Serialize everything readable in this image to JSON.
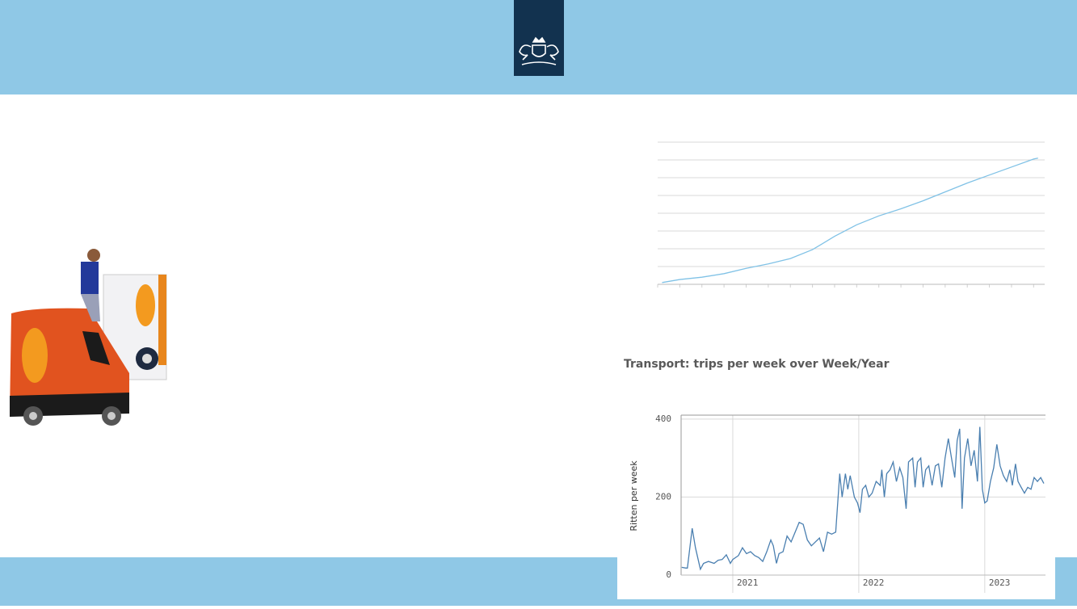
{
  "chart_data": [
    {
      "type": "line",
      "color": "#80c2e6",
      "grid": "y",
      "tick_labels": false,
      "x": [
        0.2,
        1,
        2,
        3,
        4,
        5,
        6,
        7,
        8,
        9,
        10,
        11,
        12,
        13,
        14,
        15,
        16,
        17,
        17.2
      ],
      "values": [
        0.1,
        0.27,
        0.4,
        0.6,
        0.9,
        1.15,
        1.45,
        1.95,
        2.7,
        3.35,
        3.85,
        4.25,
        4.7,
        5.2,
        5.7,
        6.15,
        6.6,
        7.05,
        7.1
      ],
      "xlim": [
        0,
        17.5
      ],
      "xticks": [
        0,
        1,
        2,
        3,
        4,
        5,
        6,
        7,
        8,
        9,
        10,
        11,
        12,
        13,
        14,
        15,
        16,
        17
      ],
      "ylim": [
        0,
        8
      ],
      "yticks": [
        0,
        1,
        2,
        3,
        4,
        5,
        6,
        7,
        8
      ]
    },
    {
      "type": "line",
      "title": "Transport: trips per week over Week/Year",
      "ylabel": "Ritten per week",
      "color": "#4a7fb0",
      "grid": "both",
      "tick_labels": true,
      "x": [
        2020.595,
        2020.627,
        2020.64,
        2020.678,
        2020.704,
        2020.743,
        2020.768,
        2020.807,
        2020.852,
        2020.884,
        2020.916,
        2020.949,
        2020.981,
        2021.0,
        2021.045,
        2021.077,
        2021.109,
        2021.141,
        2021.174,
        2021.206,
        2021.238,
        2021.27,
        2021.302,
        2021.322,
        2021.347,
        2021.367,
        2021.399,
        2021.431,
        2021.463,
        2021.495,
        2021.527,
        2021.559,
        2021.592,
        2021.624,
        2021.656,
        2021.688,
        2021.72,
        2021.752,
        2021.785,
        2021.817,
        2021.849,
        2021.868,
        2021.894,
        2021.913,
        2021.932,
        2021.965,
        2021.99,
        2022.01,
        2022.029,
        2022.055,
        2022.08,
        2022.106,
        2022.138,
        2022.17,
        2022.183,
        2022.203,
        2022.222,
        2022.248,
        2022.273,
        2022.299,
        2022.325,
        2022.35,
        2022.376,
        2022.395,
        2022.428,
        2022.447,
        2022.466,
        2022.492,
        2022.511,
        2022.531,
        2022.556,
        2022.582,
        2022.608,
        2022.633,
        2022.659,
        2022.685,
        2022.711,
        2022.736,
        2022.762,
        2022.781,
        2022.801,
        2022.82,
        2022.839,
        2022.865,
        2022.891,
        2022.916,
        2022.942,
        2022.961,
        2022.981,
        2023.0,
        2023.019,
        2023.045,
        2023.071,
        2023.096,
        2023.122,
        2023.148,
        2023.174,
        2023.199,
        2023.219,
        2023.244,
        2023.264,
        2023.289,
        2023.315,
        2023.341,
        2023.367,
        2023.392,
        2023.418,
        2023.444,
        2023.469
      ],
      "values": [
        20,
        18,
        18,
        120,
        70,
        15,
        30,
        35,
        30,
        38,
        40,
        52,
        30,
        40,
        50,
        70,
        55,
        60,
        50,
        45,
        35,
        60,
        90,
        75,
        30,
        55,
        60,
        100,
        85,
        110,
        135,
        130,
        90,
        75,
        85,
        95,
        60,
        110,
        105,
        110,
        260,
        200,
        260,
        220,
        255,
        200,
        185,
        160,
        220,
        230,
        200,
        210,
        240,
        230,
        270,
        200,
        260,
        270,
        290,
        240,
        275,
        250,
        170,
        290,
        300,
        225,
        290,
        300,
        225,
        270,
        280,
        230,
        280,
        285,
        225,
        300,
        350,
        300,
        250,
        345,
        375,
        170,
        300,
        350,
        280,
        320,
        240,
        380,
        220,
        185,
        190,
        240,
        275,
        335,
        280,
        255,
        240,
        270,
        230,
        285,
        240,
        225,
        210,
        225,
        220,
        250,
        240,
        250,
        235
      ],
      "xlim": [
        2020.59,
        2023.482
      ],
      "xticks": [
        2021,
        2022,
        2023
      ],
      "ylim": [
        0,
        410
      ],
      "yticks": [
        0,
        200,
        400
      ]
    }
  ]
}
